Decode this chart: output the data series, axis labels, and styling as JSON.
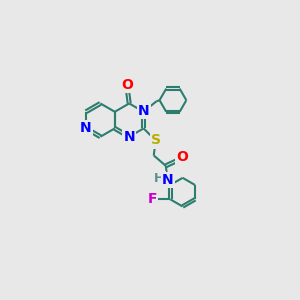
{
  "bg_color": "#e8e8e8",
  "bond_color": "#2d7d6e",
  "N_color": "#0000ff",
  "O_color": "#ff0000",
  "S_color": "#b8b000",
  "F_color": "#cc00cc",
  "H_color": "#5a9090",
  "line_width": 1.5,
  "font_size": 10,
  "xlim": [
    0,
    10
  ],
  "ylim": [
    0,
    10
  ]
}
